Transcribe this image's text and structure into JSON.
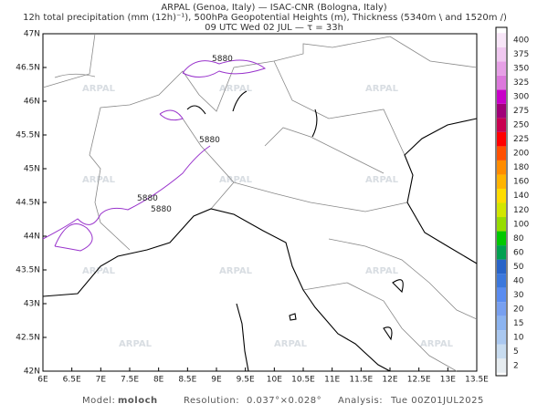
{
  "header": {
    "line1": "ARPAL (Genoa, Italy)  —  ISAC-CNR (Bologna, Italy)",
    "line2": "12h total precipitation (mm (12h)⁻¹), 500hPa Geopotential Heights (m), Thickness (5340m \\ and 1520m /)",
    "line3": "09 UTC Wed 02 JUL  —  τ = 33h"
  },
  "map": {
    "lon_labels": [
      "6E",
      "6.5E",
      "7E",
      "7.5E",
      "8E",
      "8.5E",
      "9E",
      "9.5E",
      "10E",
      "10.5E",
      "11E",
      "11.5E",
      "12E",
      "12.5E",
      "13E",
      "13.5E"
    ],
    "lat_labels": [
      "42N",
      "42.5N",
      "43N",
      "43.5N",
      "44N",
      "44.5N",
      "45N",
      "45.5N",
      "46N",
      "46.5N",
      "47N"
    ],
    "contour_label": "5880",
    "watermark": "ARPAL"
  },
  "colorbar": {
    "levels": [
      2,
      5,
      10,
      15,
      20,
      30,
      40,
      50,
      60,
      80,
      100,
      120,
      140,
      160,
      180,
      200,
      225,
      250,
      275,
      300,
      325,
      350,
      375,
      400
    ],
    "colors": [
      "#e6ecf0",
      "#c8dcf0",
      "#aac8f0",
      "#8cb4f0",
      "#78a0f0",
      "#5a8cf0",
      "#3c78dc",
      "#2864c8",
      "#00a050",
      "#00c800",
      "#96dc00",
      "#d2e600",
      "#ffdc00",
      "#ffb400",
      "#ff8c00",
      "#ff5000",
      "#ff0000",
      "#c80050",
      "#a00078",
      "#c800c8",
      "#dc78dc",
      "#e6a0e6",
      "#f0c8f0",
      "#f8e6f8"
    ]
  },
  "footer": {
    "model_label": "Model:",
    "model": "moloch",
    "resolution_label": "Resolution:",
    "resolution": "0.037°×0.028°",
    "analysis_label": "Analysis:",
    "analysis": "Tue 00Z01JUL2025"
  }
}
